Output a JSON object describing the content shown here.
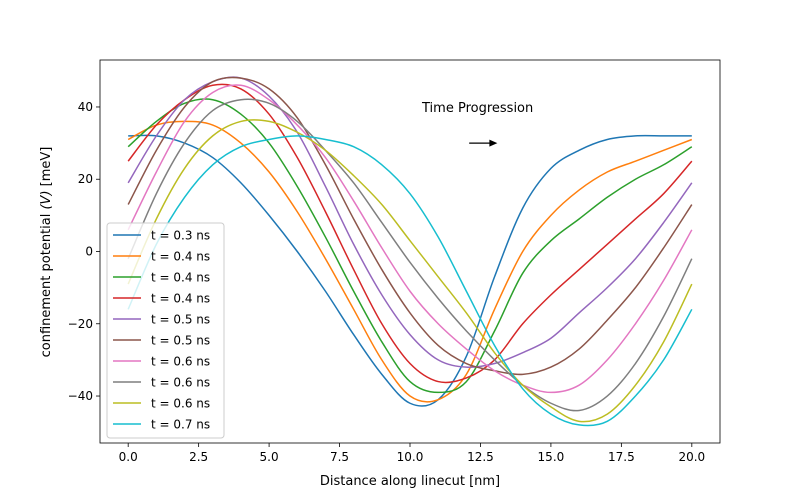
{
  "chart_data": {
    "type": "line",
    "title": "",
    "xlabel": "Distance along linecut [nm]",
    "ylabel_prefix": "confinement potential ",
    "ylabel_var": "(V)",
    "ylabel_suffix": " [meV]",
    "xlim": [
      -1.0,
      21.0
    ],
    "ylim": [
      -53,
      53
    ],
    "xticks": [
      0.0,
      2.5,
      5.0,
      7.5,
      10.0,
      12.5,
      15.0,
      17.5,
      20.0
    ],
    "xtick_labels": [
      "0.0",
      "2.5",
      "5.0",
      "7.5",
      "10.0",
      "12.5",
      "15.0",
      "17.5",
      "20.0"
    ],
    "yticks": [
      -40,
      -20,
      0,
      20,
      40
    ],
    "ytick_labels": [
      "−40",
      "−20",
      "0",
      "20",
      "40"
    ],
    "grid": false,
    "legend_position": "lower-left",
    "annotation": {
      "text": "Time Progression",
      "x": 12.4,
      "y": 40,
      "arrow_from": [
        12.1,
        30
      ],
      "arrow_to": [
        13.1,
        30
      ]
    },
    "series": [
      {
        "name": "t = 0.3 ns",
        "color": "#1f77b4",
        "x": [
          0,
          1,
          2,
          3,
          4,
          5,
          6,
          7,
          8,
          9,
          10,
          11,
          12,
          13,
          14,
          15,
          16,
          17,
          18,
          19,
          20
        ],
        "y": [
          32,
          32,
          30,
          26,
          19,
          10,
          0,
          -11,
          -23,
          -34,
          -42,
          -41,
          -29,
          -7,
          12,
          23,
          28,
          31,
          32,
          32,
          32
        ]
      },
      {
        "name": "t = 0.4 ns",
        "color": "#ff7f0e",
        "x": [
          0,
          1,
          2,
          3,
          4,
          5,
          6,
          7,
          8,
          9,
          10,
          11,
          12,
          13,
          14,
          15,
          16,
          17,
          18,
          19,
          20
        ],
        "y": [
          31,
          35,
          36,
          35,
          30,
          22,
          11,
          -2,
          -16,
          -30,
          -40,
          -41,
          -34,
          -16,
          0,
          10,
          17,
          22,
          25,
          28,
          31
        ]
      },
      {
        "name": "t = 0.4 ns",
        "color": "#2ca02c",
        "x": [
          0,
          1,
          2,
          3,
          4,
          5,
          6,
          7,
          8,
          9,
          10,
          11,
          12,
          13,
          14,
          15,
          16,
          17,
          18,
          19,
          20
        ],
        "y": [
          29,
          36,
          41,
          42,
          38,
          30,
          18,
          4,
          -11,
          -25,
          -36,
          -39,
          -36,
          -22,
          -6,
          3,
          9,
          15,
          20,
          24,
          29
        ]
      },
      {
        "name": "t = 0.4 ns",
        "color": "#d62728",
        "x": [
          0,
          1,
          2,
          3,
          4,
          5,
          6,
          7,
          8,
          9,
          10,
          11,
          12,
          13,
          14,
          15,
          16,
          17,
          18,
          19,
          20
        ],
        "y": [
          25,
          35,
          42,
          46,
          45,
          38,
          26,
          11,
          -5,
          -20,
          -31,
          -36,
          -35,
          -30,
          -20,
          -12,
          -5,
          2,
          9,
          16,
          25
        ]
      },
      {
        "name": "t = 0.5 ns",
        "color": "#9467bd",
        "x": [
          0,
          1,
          2,
          3,
          4,
          5,
          6,
          7,
          8,
          9,
          10,
          11,
          12,
          13,
          14,
          15,
          16,
          17,
          18,
          19,
          20
        ],
        "y": [
          19,
          32,
          42,
          47,
          48,
          43,
          33,
          18,
          2,
          -12,
          -23,
          -30,
          -32,
          -31,
          -28,
          -24,
          -17,
          -10,
          -2,
          8,
          19
        ]
      },
      {
        "name": "t = 0.5 ns",
        "color": "#8c564b",
        "x": [
          0,
          1,
          2,
          3,
          4,
          5,
          6,
          7,
          8,
          9,
          10,
          11,
          12,
          13,
          14,
          15,
          16,
          17,
          18,
          19,
          20
        ],
        "y": [
          13,
          28,
          40,
          47,
          48,
          45,
          37,
          24,
          9,
          -5,
          -17,
          -26,
          -31,
          -33,
          -34,
          -32,
          -27,
          -19,
          -10,
          1,
          13
        ]
      },
      {
        "name": "t = 0.6 ns",
        "color": "#e377c2",
        "x": [
          0,
          1,
          2,
          3,
          4,
          5,
          6,
          7,
          8,
          9,
          10,
          11,
          12,
          13,
          14,
          15,
          16,
          17,
          18,
          19,
          20
        ],
        "y": [
          6,
          22,
          36,
          44,
          46,
          42,
          35,
          26,
          14,
          1,
          -11,
          -20,
          -27,
          -33,
          -37,
          -39,
          -37,
          -30,
          -20,
          -8,
          6
        ]
      },
      {
        "name": "t = 0.6 ns",
        "color": "#7f7f7f",
        "x": [
          0,
          1,
          2,
          3,
          4,
          5,
          6,
          7,
          8,
          9,
          10,
          11,
          12,
          13,
          14,
          15,
          16,
          17,
          18,
          19,
          20
        ],
        "y": [
          -2,
          16,
          30,
          39,
          42,
          41,
          36,
          28,
          19,
          8,
          -3,
          -13,
          -22,
          -30,
          -37,
          -42,
          -44,
          -40,
          -31,
          -18,
          -2
        ]
      },
      {
        "name": "t = 0.6 ns",
        "color": "#bcbd22",
        "x": [
          0,
          1,
          2,
          3,
          4,
          5,
          6,
          7,
          8,
          9,
          10,
          11,
          12,
          13,
          14,
          15,
          16,
          17,
          18,
          19,
          20
        ],
        "y": [
          -9,
          9,
          23,
          32,
          36,
          36,
          33,
          28,
          21,
          13,
          3,
          -7,
          -17,
          -28,
          -37,
          -43,
          -47,
          -45,
          -37,
          -25,
          -9
        ]
      },
      {
        "name": "t = 0.7 ns",
        "color": "#17becf",
        "x": [
          0,
          1,
          2,
          3,
          4,
          5,
          6,
          7,
          8,
          9,
          10,
          11,
          12,
          13,
          14,
          15,
          16,
          17,
          18,
          19,
          20
        ],
        "y": [
          -16,
          2,
          15,
          24,
          29,
          31,
          32,
          31,
          29,
          24,
          16,
          4,
          -11,
          -26,
          -38,
          -45,
          -48,
          -47,
          -40,
          -30,
          -16
        ]
      }
    ]
  }
}
